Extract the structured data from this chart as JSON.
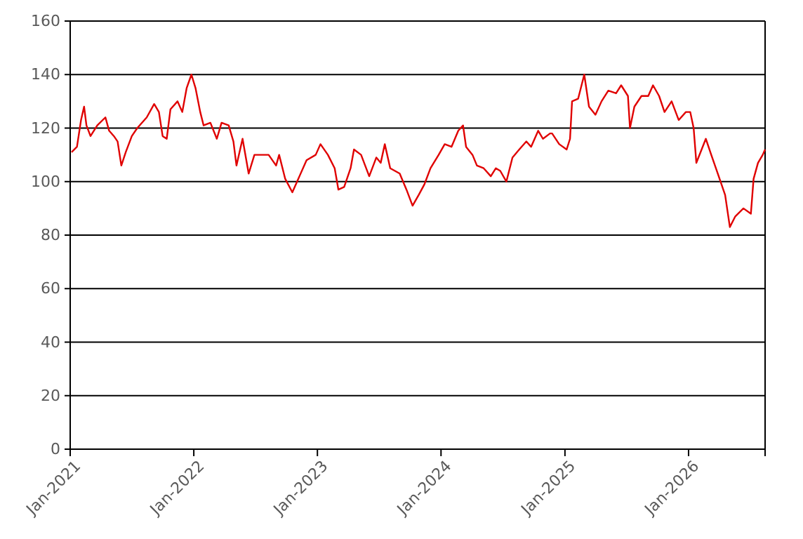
{
  "chart_data": {
    "type": "line",
    "xlim": [
      "2021-01-01",
      "2026-08-15"
    ],
    "ylim": [
      0,
      160
    ],
    "yticks": [
      0,
      20,
      40,
      60,
      80,
      100,
      120,
      140,
      160
    ],
    "xticks": [
      {
        "value": "2021-01-01",
        "label": "Jan-2021"
      },
      {
        "value": "2022-01-01",
        "label": "Jan-2022"
      },
      {
        "value": "2023-01-01",
        "label": "Jan-2023"
      },
      {
        "value": "2024-01-01",
        "label": "Jan-2024"
      },
      {
        "value": "2025-01-01",
        "label": "Jan-2025"
      },
      {
        "value": "2026-01-01",
        "label": "Jan-2026"
      }
    ],
    "grid": "y",
    "marker": "none",
    "line_style": "solid",
    "series": [
      {
        "color": "#e00000",
        "x": [
          "2021-01-05",
          "2021-01-21",
          "2021-02-02",
          "2021-02-11",
          "2021-02-18",
          "2021-03-02",
          "2021-03-22",
          "2021-04-15",
          "2021-04-26",
          "2021-05-10",
          "2021-05-21",
          "2021-06-01",
          "2021-06-14",
          "2021-07-02",
          "2021-07-18",
          "2021-08-15",
          "2021-09-06",
          "2021-09-20",
          "2021-10-01",
          "2021-10-13",
          "2021-10-24",
          "2021-11-14",
          "2021-11-28",
          "2021-12-11",
          "2021-12-25",
          "2022-01-06",
          "2022-01-20",
          "2022-01-30",
          "2022-02-19",
          "2022-03-10",
          "2022-03-24",
          "2022-04-14",
          "2022-04-28",
          "2022-05-07",
          "2022-05-25",
          "2022-06-12",
          "2022-06-29",
          "2022-07-27",
          "2022-08-10",
          "2022-09-01",
          "2022-09-10",
          "2022-09-28",
          "2022-10-19",
          "2022-11-09",
          "2022-11-30",
          "2022-12-27",
          "2023-01-10",
          "2023-02-01",
          "2023-02-21",
          "2023-03-04",
          "2023-03-21",
          "2023-04-09",
          "2023-04-19",
          "2023-05-10",
          "2023-06-03",
          "2023-06-24",
          "2023-07-07",
          "2023-07-19",
          "2023-08-04",
          "2023-09-01",
          "2023-09-21",
          "2023-10-09",
          "2023-10-27",
          "2023-11-13",
          "2023-12-01",
          "2023-12-25",
          "2024-01-12",
          "2024-02-01",
          "2024-02-21",
          "2024-03-06",
          "2024-03-15",
          "2024-04-03",
          "2024-04-16",
          "2024-05-06",
          "2024-05-27",
          "2024-06-11",
          "2024-06-24",
          "2024-07-12",
          "2024-07-30",
          "2024-08-19",
          "2024-09-09",
          "2024-09-23",
          "2024-10-14",
          "2024-10-28",
          "2024-11-18",
          "2024-11-24",
          "2024-12-15",
          "2025-01-06",
          "2025-01-16",
          "2025-01-22",
          "2025-02-09",
          "2025-02-27",
          "2025-03-13",
          "2025-04-01",
          "2025-04-19",
          "2025-05-09",
          "2025-06-01",
          "2025-06-16",
          "2025-07-06",
          "2025-07-12",
          "2025-07-25",
          "2025-08-15",
          "2025-09-04",
          "2025-09-18",
          "2025-10-06",
          "2025-10-22",
          "2025-11-12",
          "2025-12-03",
          "2025-12-24",
          "2026-01-06",
          "2026-01-16",
          "2026-01-24",
          "2026-02-21",
          "2026-03-09",
          "2026-03-31",
          "2026-04-19",
          "2026-05-03",
          "2026-05-19",
          "2026-06-12",
          "2026-07-04",
          "2026-07-12",
          "2026-07-25",
          "2026-08-08",
          "2026-08-15"
        ],
        "values": [
          111,
          113,
          123,
          128,
          121,
          117,
          121,
          124,
          119,
          117,
          115,
          106,
          111,
          117,
          120,
          124,
          129,
          126,
          117,
          116,
          127,
          130,
          126,
          135,
          140,
          135,
          126,
          121,
          122,
          116,
          122,
          121,
          115,
          106,
          116,
          103,
          110,
          110,
          110,
          106,
          110,
          101,
          96,
          102,
          108,
          110,
          114,
          110,
          105,
          97,
          98,
          105,
          112,
          110,
          102,
          109,
          107,
          114,
          105,
          103,
          97,
          91,
          95,
          99,
          105,
          110,
          114,
          113,
          119,
          121,
          113,
          110,
          106,
          105,
          102,
          105,
          104,
          100,
          109,
          112,
          115,
          113,
          119,
          116,
          118,
          118,
          114,
          112,
          116,
          130,
          131,
          140,
          128,
          125,
          130,
          134,
          133,
          136,
          132,
          120,
          128,
          132,
          132,
          136,
          132,
          126,
          130,
          123,
          126,
          126,
          120,
          107,
          116,
          110,
          102,
          95,
          83,
          87,
          90,
          88,
          101,
          107,
          110,
          112
        ]
      }
    ]
  }
}
